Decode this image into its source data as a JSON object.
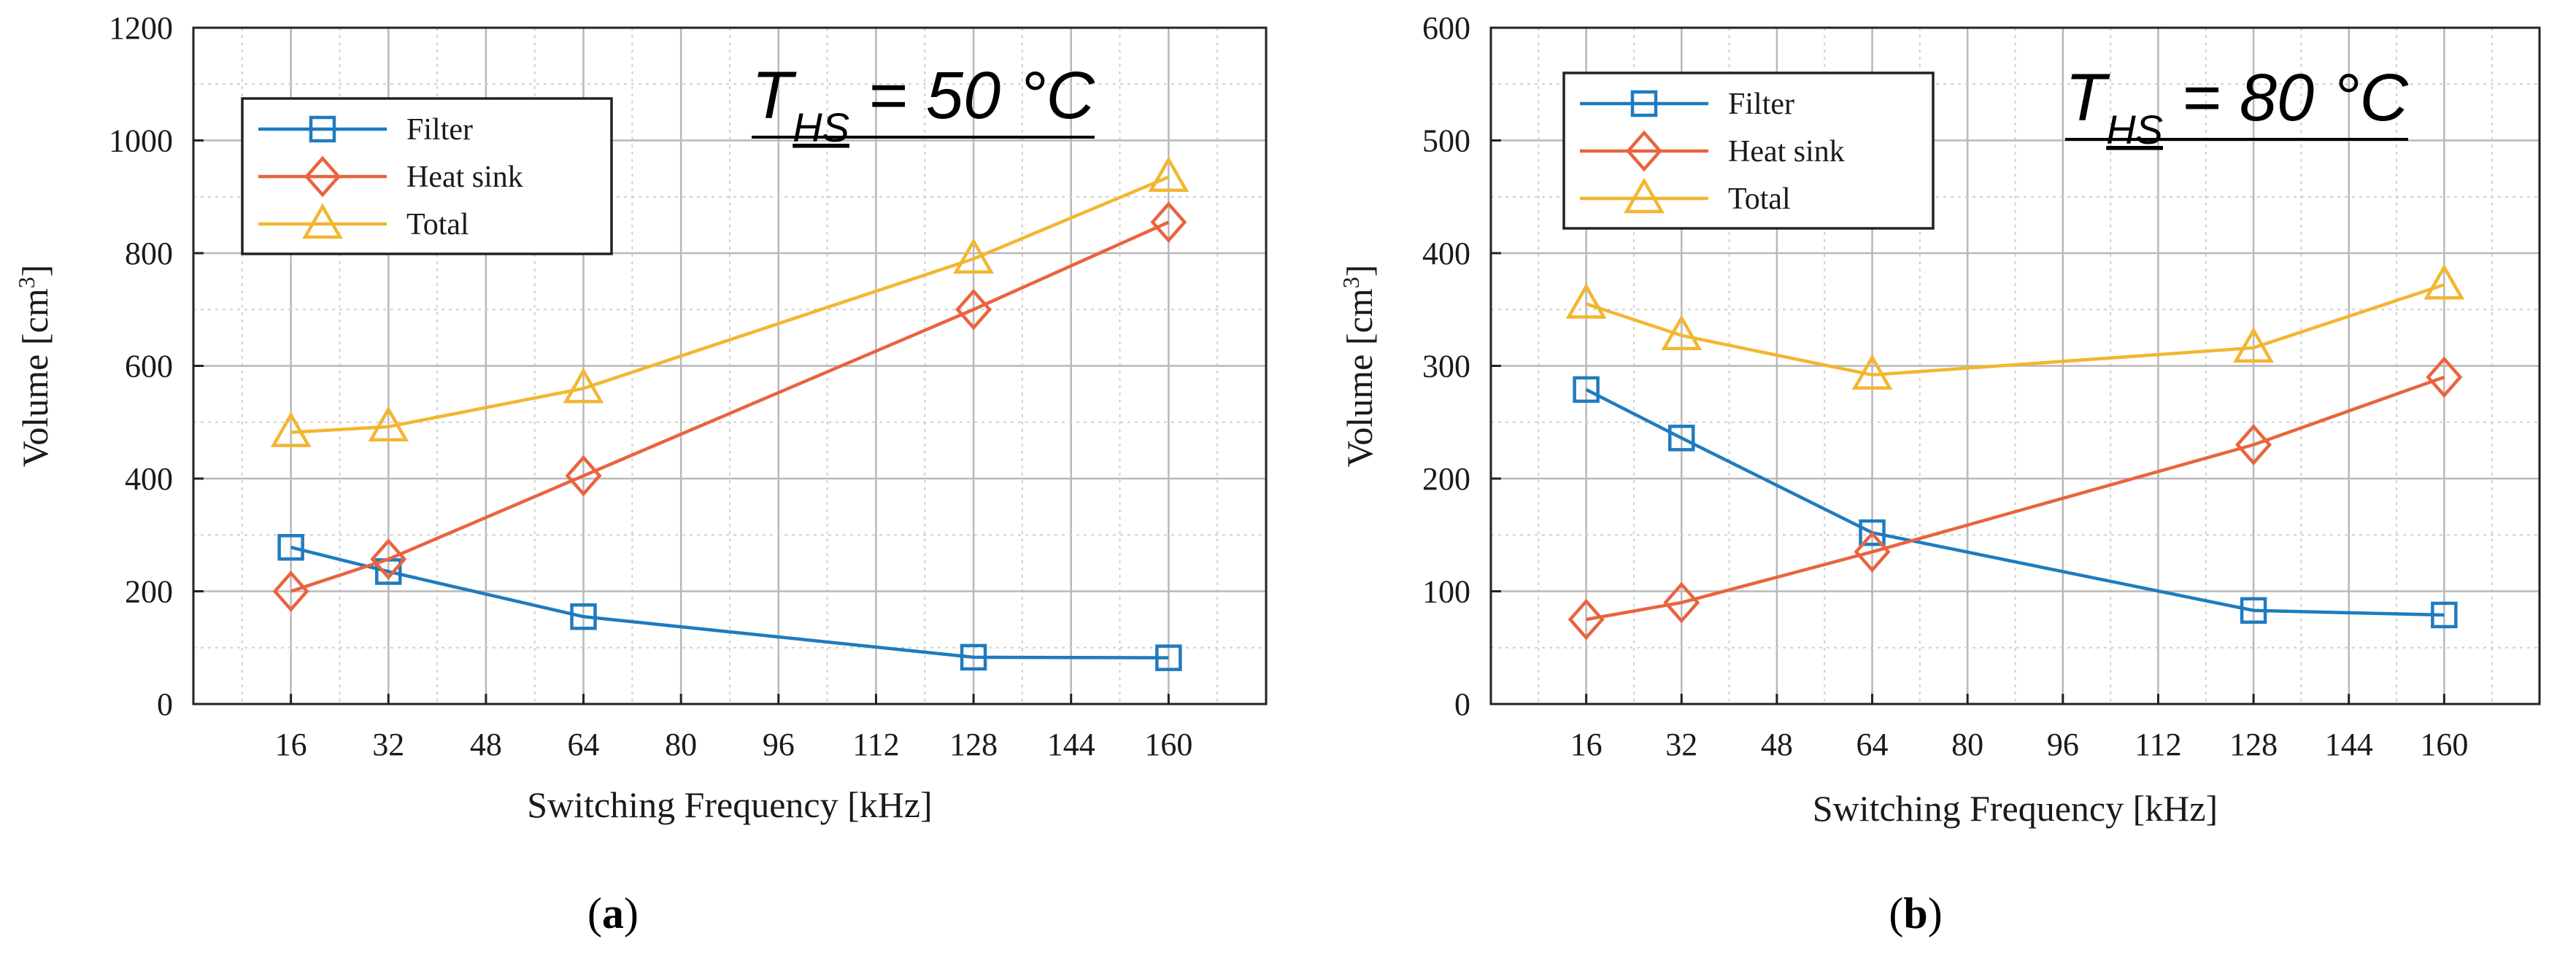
{
  "chart_data": [
    {
      "type": "line",
      "panel": "(a)",
      "caption_open": "(",
      "caption_letter": "a",
      "caption_close": ")",
      "annotation_main": "T",
      "annotation_sub": "HS",
      "annotation_rest": " = 50 °C",
      "xlabel": "Switching Frequency [kHz]",
      "ylabel_main": "Volume [cm",
      "ylabel_sup": "3",
      "ylabel_close": "]",
      "xlim": [
        0,
        176
      ],
      "ylim": [
        0,
        1200
      ],
      "xticks": [
        16,
        32,
        48,
        64,
        80,
        96,
        112,
        128,
        144,
        160
      ],
      "yticks": [
        0,
        200,
        400,
        600,
        800,
        1000,
        1200
      ],
      "legend_position": "top-left",
      "grid": true,
      "x": [
        16,
        32,
        64,
        128,
        160
      ],
      "series": [
        {
          "name": "Filter",
          "color": "#1f7bbf",
          "marker": "square",
          "values": [
            278,
            235,
            155,
            83,
            82
          ]
        },
        {
          "name": "Heat sink",
          "color": "#e8643f",
          "marker": "diamond",
          "values": [
            200,
            257,
            405,
            700,
            855
          ]
        },
        {
          "name": "Total",
          "color": "#f2b630",
          "marker": "triangle",
          "values": [
            482,
            492,
            560,
            790,
            935
          ]
        }
      ]
    },
    {
      "type": "line",
      "panel": "(b)",
      "caption_open": "(",
      "caption_letter": "b",
      "caption_close": ")",
      "annotation_main": "T",
      "annotation_sub": "HS",
      "annotation_rest": " = 80 °C",
      "xlabel": "Switching Frequency [kHz]",
      "ylabel_main": "Volume [cm",
      "ylabel_sup": "3",
      "ylabel_close": "]",
      "xlim": [
        0,
        176
      ],
      "ylim": [
        0,
        600
      ],
      "xticks": [
        16,
        32,
        48,
        64,
        80,
        96,
        112,
        128,
        144,
        160
      ],
      "yticks": [
        0,
        100,
        200,
        300,
        400,
        500,
        600
      ],
      "legend_position": "top-left",
      "grid": true,
      "x": [
        16,
        32,
        64,
        128,
        160
      ],
      "series": [
        {
          "name": "Filter",
          "color": "#1f7bbf",
          "marker": "square",
          "values": [
            279,
            236,
            152,
            83,
            79
          ]
        },
        {
          "name": "Heat sink",
          "color": "#e8643f",
          "marker": "diamond",
          "values": [
            75,
            90,
            135,
            230,
            290
          ]
        },
        {
          "name": "Total",
          "color": "#f2b630",
          "marker": "triangle",
          "values": [
            355,
            327,
            292,
            316,
            372
          ]
        }
      ]
    }
  ]
}
